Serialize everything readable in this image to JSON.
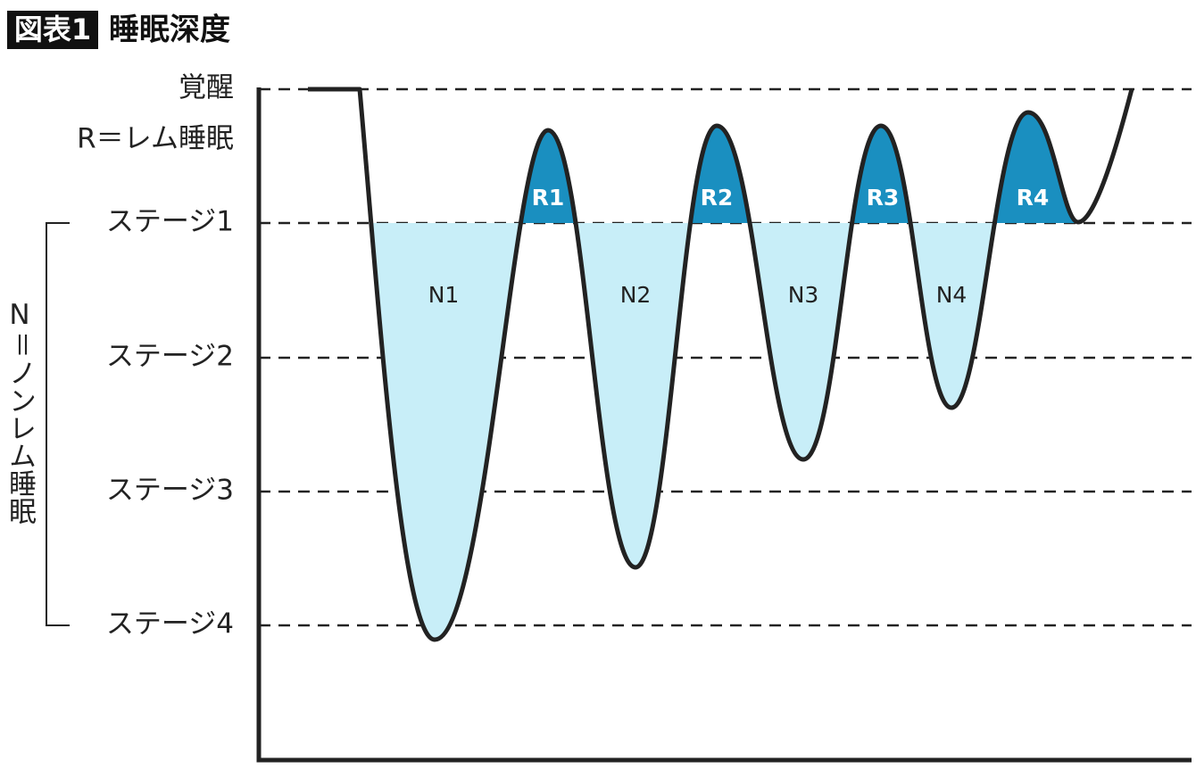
{
  "header": {
    "badge": "図表1",
    "title": "睡眠深度"
  },
  "levels": [
    "覚醒",
    "R＝レム睡眠",
    "ステージ1",
    "ステージ2",
    "ステージ3",
    "ステージ4"
  ],
  "group_label": "N＝ノンレム睡眠",
  "nrem_labels": [
    "N1",
    "N2",
    "N3",
    "N4"
  ],
  "rem_labels": [
    "R1",
    "R2",
    "R3",
    "R4"
  ]
}
